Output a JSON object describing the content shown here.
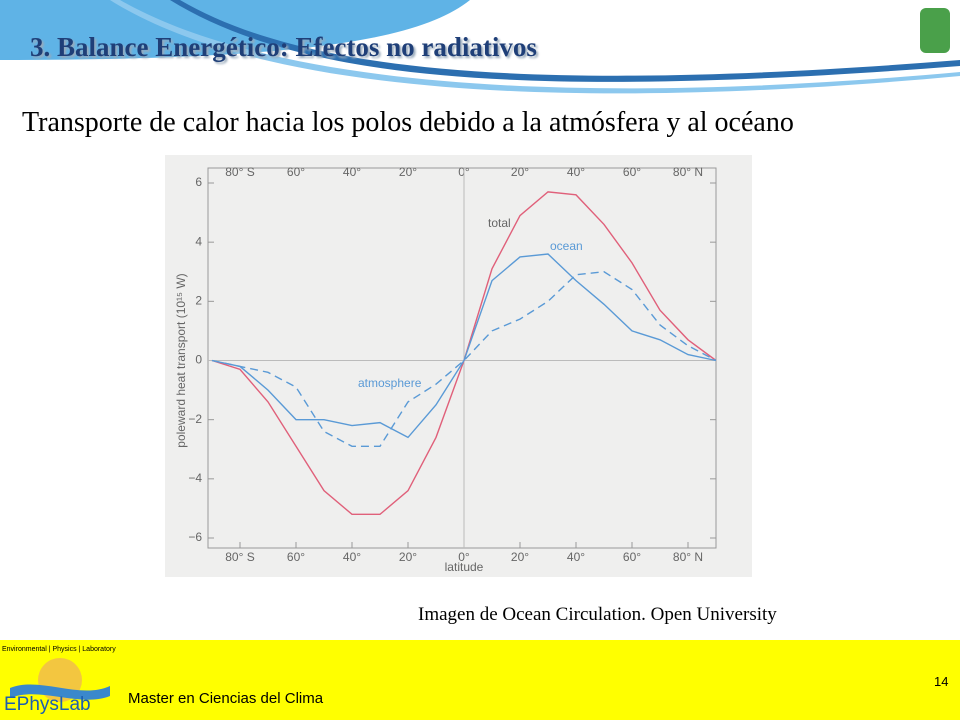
{
  "slide": {
    "title": "3. Balance Energético: Efectos no radiativos",
    "body": "Transporte de calor hacia los polos debido a la atmósfera y al océano",
    "caption": "Imagen de  Ocean Circulation. Open University",
    "footer": "Master en Ciencias del Clima",
    "page": "14",
    "logo_top": "Environmental | Physics | Laboratory",
    "logo_name": "EPhysLab"
  },
  "chart_data": {
    "type": "line",
    "xlabel": "latitude",
    "ylabel": "poleward heat transport (10¹⁵ W)",
    "x": [
      -90,
      -80,
      -70,
      -60,
      -50,
      -40,
      -30,
      -20,
      -10,
      0,
      10,
      20,
      30,
      40,
      50,
      60,
      70,
      80,
      90
    ],
    "series": [
      {
        "name": "total",
        "color": "#e0607a",
        "style": "solid",
        "values": [
          0,
          -0.3,
          -1.4,
          -2.9,
          -4.4,
          -5.2,
          -5.2,
          -4.4,
          -2.6,
          0,
          3.1,
          4.9,
          5.7,
          5.6,
          4.6,
          3.3,
          1.7,
          0.7,
          0
        ]
      },
      {
        "name": "ocean",
        "color": "#5a9ad6",
        "style": "solid",
        "values": [
          0,
          -0.2,
          -1.0,
          -2.0,
          -2.0,
          -2.2,
          -2.1,
          -2.6,
          -1.5,
          0,
          2.7,
          3.5,
          3.6,
          2.7,
          1.9,
          1.0,
          0.7,
          0.2,
          0
        ]
      },
      {
        "name": "atmosphere",
        "color": "#5a9ad6",
        "style": "dashed",
        "values": [
          0,
          -0.2,
          -0.4,
          -0.9,
          -2.4,
          -2.9,
          -2.9,
          -1.4,
          -0.8,
          0,
          1.0,
          1.4,
          2.0,
          2.9,
          3.0,
          2.4,
          1.2,
          0.5,
          0
        ]
      }
    ],
    "xlim": [
      -90,
      90
    ],
    "xticks": [
      {
        "value": -80,
        "label": "80° S"
      },
      {
        "value": -60,
        "label": "60°"
      },
      {
        "value": -40,
        "label": "40°"
      },
      {
        "value": -20,
        "label": "20°"
      },
      {
        "value": 0,
        "label": "0°"
      },
      {
        "value": 20,
        "label": "20°"
      },
      {
        "value": 40,
        "label": "40°"
      },
      {
        "value": 60,
        "label": "60°"
      },
      {
        "value": 80,
        "label": "80° N"
      }
    ],
    "ylim": [
      -6,
      6
    ],
    "yticks": [
      {
        "value": -6,
        "label": "−6"
      },
      {
        "value": -4,
        "label": "−4"
      },
      {
        "value": -2,
        "label": "−2"
      },
      0,
      2,
      4,
      6
    ]
  }
}
